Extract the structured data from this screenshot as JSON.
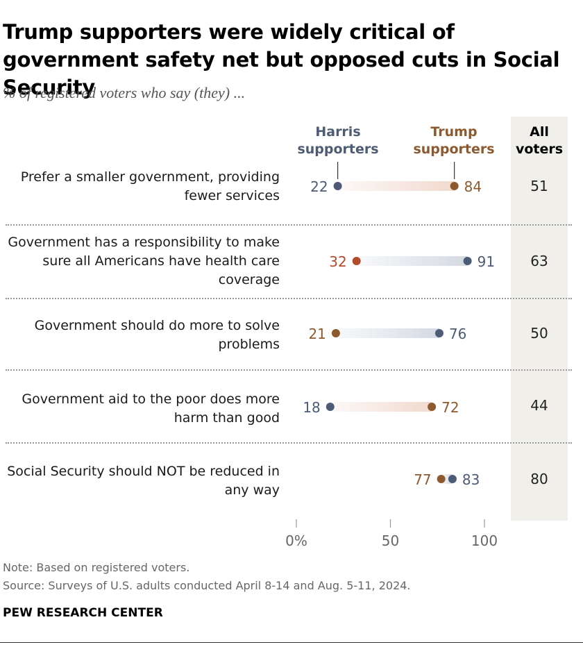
{
  "title": "Trump supporters were widely critical of government safety net but opposed cuts in Social Security",
  "subtitle": "% of registered voters who say (they) ...",
  "columns": {
    "harris": "Harris supporters",
    "trump": "Trump supporters",
    "all": "All voters"
  },
  "colors": {
    "harris": "#4d5b75",
    "trump": "#8c5a2e",
    "harris_bar": "#d4d9e3",
    "trump_bar": "#f1d9cf",
    "trump_dot_hc": "#b34a2c"
  },
  "chart_data": {
    "type": "dot-plot",
    "xlim": [
      0,
      100
    ],
    "xticks": [
      "0%",
      "50",
      "100"
    ],
    "series": [
      {
        "name": "Harris supporters",
        "values": [
          22,
          91,
          76,
          18,
          83
        ]
      },
      {
        "name": "Trump supporters",
        "values": [
          84,
          32,
          21,
          72,
          77
        ]
      },
      {
        "name": "All voters",
        "values": [
          51,
          63,
          50,
          44,
          80
        ]
      }
    ],
    "rows": [
      {
        "label": "Prefer a smaller government, providing fewer services",
        "harris": 22,
        "trump": 84,
        "all": "51"
      },
      {
        "label": "Government has a responsibility to make sure all Americans have health care coverage",
        "harris": 91,
        "trump": 32,
        "all": "63"
      },
      {
        "label": "Government should do more to solve problems",
        "harris": 76,
        "trump": 21,
        "all": "50"
      },
      {
        "label": "Government aid to the poor does more harm than good",
        "harris": 18,
        "trump": 72,
        "all": "44"
      },
      {
        "label": "Social Security should NOT be reduced in any way",
        "harris": 83,
        "trump": 77,
        "all": "80"
      }
    ]
  },
  "note": "Note: Based on registered voters.",
  "source": "Source: Surveys of U.S. adults conducted April 8-14 and Aug. 5-11, 2024.",
  "org": "PEW RESEARCH CENTER"
}
